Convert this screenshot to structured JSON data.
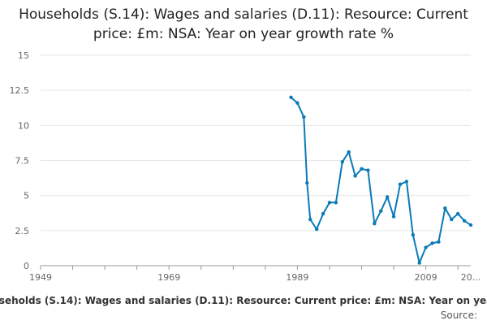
{
  "chart_data": {
    "type": "line",
    "title": "Households (S.14): Wages and salaries (D.11): Resource: Current price: £m: NSA: Year on year growth rate %",
    "xlabel": "",
    "ylabel": "",
    "x": [
      1988,
      1989,
      1990,
      1990.5,
      1991,
      1992,
      1993,
      1994,
      1995,
      1996,
      1997,
      1998,
      1999,
      2000,
      2001,
      2002,
      2003,
      2004,
      2005,
      2006,
      2007,
      2008,
      2009,
      2010,
      2011,
      2012,
      2013,
      2014,
      2015,
      2016
    ],
    "series": [
      {
        "name": "Households (S.14): Wages and salaries (D.11): Resource: Current price: £m: NSA: Year on year growth rate %",
        "values": [
          12.0,
          11.6,
          10.6,
          5.9,
          3.3,
          2.6,
          3.7,
          4.5,
          4.5,
          7.4,
          8.1,
          6.4,
          6.9,
          6.8,
          3.0,
          3.9,
          4.9,
          3.5,
          5.8,
          6.0,
          2.2,
          0.2,
          1.3,
          1.6,
          1.7,
          4.1,
          3.3,
          3.7,
          3.2,
          2.9
        ],
        "color": "#0a7ab8"
      }
    ],
    "xlim": [
      1949,
      2016
    ],
    "ylim": [
      0,
      15
    ],
    "y_ticks": [
      "0",
      "2.5",
      "5",
      "7.5",
      "10",
      "12.5",
      "15"
    ],
    "x_ticks": [
      "1949",
      "1969",
      "1989",
      "2009",
      "20..."
    ],
    "x_tick_values": [
      1949,
      1969,
      1989,
      2009,
      2016
    ],
    "grid": true,
    "legend": "bottom"
  },
  "source_label": "Source:"
}
